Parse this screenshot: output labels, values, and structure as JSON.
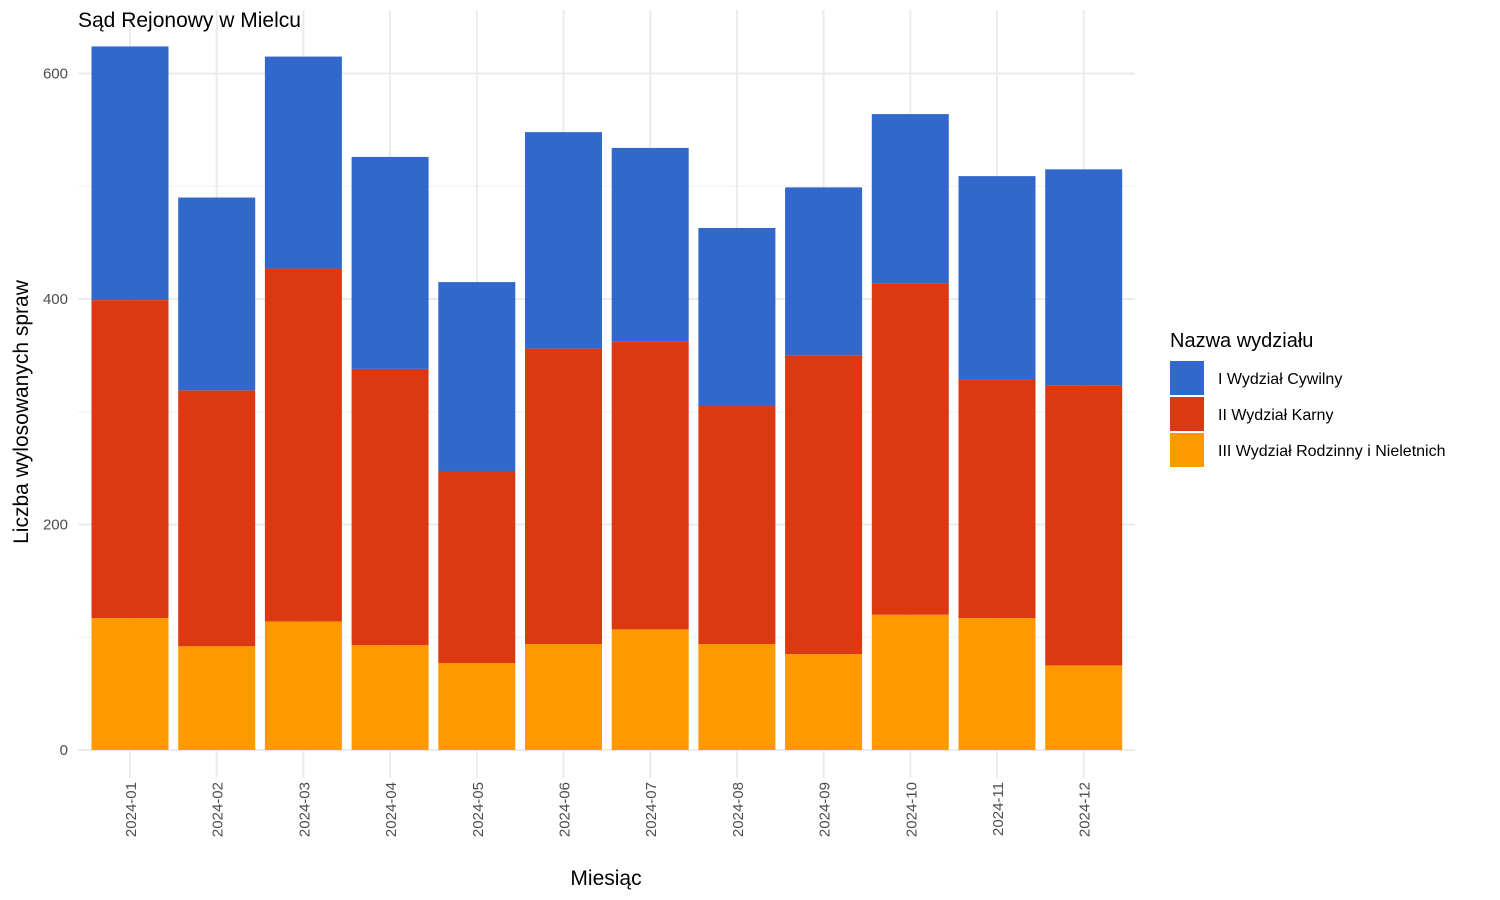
{
  "chart_data": {
    "type": "bar",
    "stacked": true,
    "title": "Sąd Rejonowy w Mielcu",
    "xlabel": "Miesiąc",
    "ylabel": "Liczba wylosowanych spraw",
    "ylim": [
      0,
      625
    ],
    "yticks": [
      0,
      200,
      400,
      600
    ],
    "grid": true,
    "legend": {
      "title": "Nazwa wydziału",
      "position": "right"
    },
    "categories": [
      "2024-01",
      "2024-02",
      "2024-03",
      "2024-04",
      "2024-05",
      "2024-06",
      "2024-07",
      "2024-08",
      "2024-09",
      "2024-10",
      "2024-11",
      "2024-12"
    ],
    "series": [
      {
        "name": "I Wydział Cywilny",
        "color": "#3268CC",
        "values": [
          225,
          171,
          188,
          188,
          168,
          192,
          172,
          157,
          149,
          150,
          180,
          192
        ]
      },
      {
        "name": "II Wydział Karny",
        "color": "#DC3912",
        "values": [
          282,
          227,
          313,
          245,
          170,
          262,
          255,
          212,
          265,
          294,
          212,
          248
        ]
      },
      {
        "name": "III Wydział Rodzinny i Nieletnich",
        "color": "#FF9900",
        "values": [
          117,
          92,
          114,
          93,
          77,
          94,
          107,
          94,
          85,
          120,
          117,
          75
        ]
      }
    ]
  }
}
